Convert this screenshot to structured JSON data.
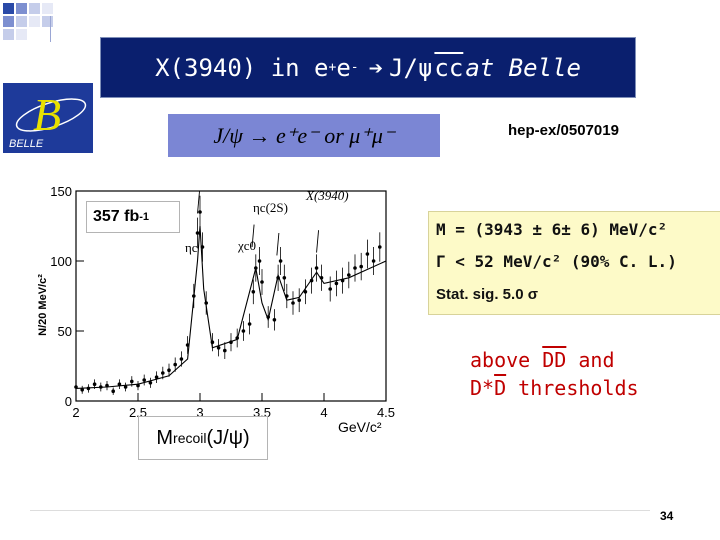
{
  "title": {
    "pre": "X(3940) in e",
    "sup1": "+",
    "mid1": "e",
    "sup2": "-",
    "arrow": "➔",
    "mid2": " J/ψ ",
    "cc": "cc",
    "post": " at Belle"
  },
  "logo": {
    "letter": "B",
    "text": "BELLE"
  },
  "formula": "J/ψ → e⁺e⁻  or  μ⁺μ⁻",
  "reference": "hep-ex/0507019",
  "result": {
    "line1": "M = (3943 ± 6± 6) MeV/c²",
    "line2": "Γ < 52 MeV/c² (90% C. L.)",
    "line3": "Stat. sig.  5.0 σ"
  },
  "thresholds": {
    "l1a": "above ",
    "l1b": "DD",
    "l1c": " and",
    "l2a": "D*",
    "l2b": "D",
    "l2c": " thresholds"
  },
  "luminosity": {
    "base": "357 fb",
    "sup": "-1"
  },
  "mrecoil": {
    "base": "M",
    "sub": "recoil",
    "tail": "(J/ψ)"
  },
  "page_number": "34",
  "plot": {
    "ylabel": "N/20 MeV/c²",
    "xunit": "GeV/c²",
    "x_ticks": [
      "2",
      "2.5",
      "3",
      "3.5",
      "4",
      "4.5"
    ],
    "y_ticks": [
      "0",
      "50",
      "100",
      "150"
    ],
    "labels": [
      "ηc",
      "χc0",
      "ηc(2S)",
      "X(3940)"
    ]
  },
  "chart_data": {
    "type": "scatter",
    "xlim": [
      2,
      4.5
    ],
    "ylim": [
      0,
      150
    ],
    "xlabel": "GeV/c²",
    "ylabel": "N/20 MeV/c²",
    "series": [
      {
        "name": "data",
        "x": [
          2.0,
          2.05,
          2.1,
          2.15,
          2.2,
          2.25,
          2.3,
          2.35,
          2.4,
          2.45,
          2.5,
          2.55,
          2.6,
          2.65,
          2.7,
          2.75,
          2.8,
          2.85,
          2.9,
          2.95,
          2.98,
          3.0,
          3.02,
          3.05,
          3.1,
          3.15,
          3.2,
          3.25,
          3.3,
          3.35,
          3.4,
          3.43,
          3.45,
          3.48,
          3.5,
          3.55,
          3.6,
          3.63,
          3.65,
          3.68,
          3.7,
          3.75,
          3.8,
          3.85,
          3.9,
          3.94,
          3.98,
          4.05,
          4.1,
          4.15,
          4.2,
          4.25,
          4.3,
          4.35,
          4.4,
          4.45
        ],
        "y": [
          10,
          8,
          9,
          12,
          10,
          11,
          7,
          12,
          10,
          14,
          11,
          15,
          13,
          17,
          20,
          22,
          26,
          30,
          40,
          75,
          120,
          135,
          110,
          70,
          42,
          38,
          36,
          42,
          45,
          50,
          55,
          78,
          95,
          100,
          85,
          60,
          58,
          88,
          100,
          88,
          75,
          70,
          72,
          78,
          86,
          95,
          88,
          80,
          84,
          86,
          90,
          95,
          96,
          105,
          100,
          110
        ]
      },
      {
        "name": "fit",
        "x": [
          2.0,
          2.25,
          2.5,
          2.75,
          2.9,
          2.98,
          3.0,
          3.03,
          3.1,
          3.3,
          3.45,
          3.5,
          3.55,
          3.63,
          3.7,
          3.8,
          3.94,
          4.0,
          4.2,
          4.5
        ],
        "y": [
          9,
          10,
          12,
          18,
          30,
          100,
          125,
          80,
          38,
          44,
          95,
          70,
          58,
          90,
          72,
          74,
          92,
          84,
          88,
          100
        ]
      }
    ]
  },
  "colors": {
    "title_bg": "#0a1f6e",
    "formula_bg": "#7b86d4",
    "result_bg": "#fdfac8",
    "threshold_text": "#c00000"
  }
}
